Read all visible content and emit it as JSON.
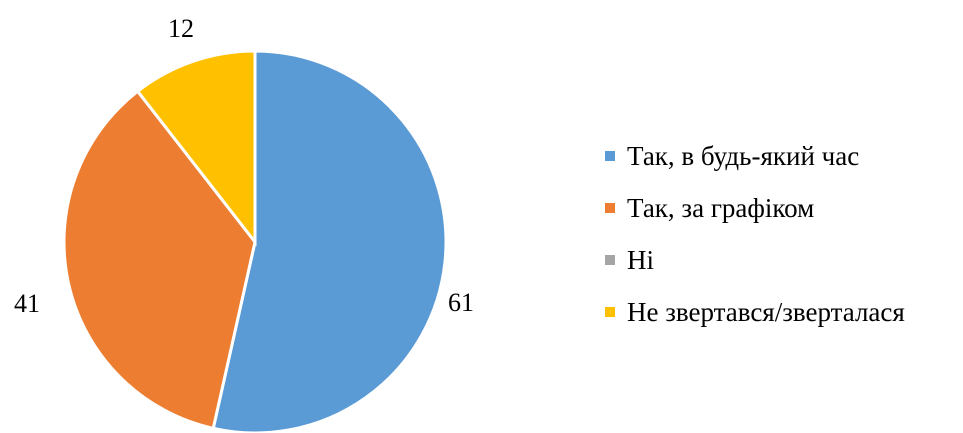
{
  "chart_data": {
    "type": "pie",
    "categories": [
      "Так, в будь-який час",
      "Так, за графіком",
      "Ні",
      "Не звертався/зверталася"
    ],
    "values": [
      61,
      41,
      0,
      12
    ],
    "colors": [
      "#5b9bd5",
      "#ed7d31",
      "#a5a5a5",
      "#ffc000"
    ],
    "data_labels": [
      "61",
      "41",
      "",
      "12"
    ],
    "legend_position": "right"
  }
}
